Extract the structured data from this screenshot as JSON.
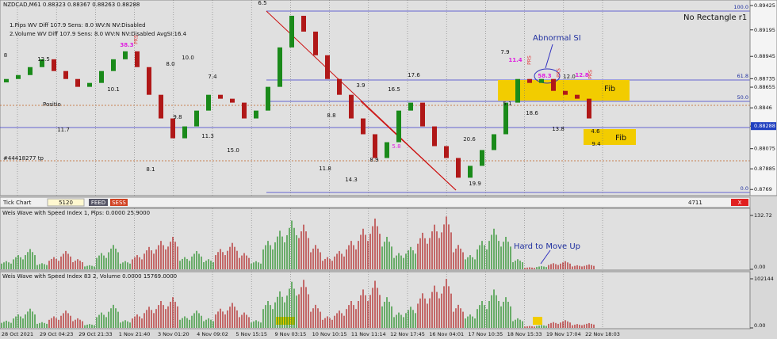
{
  "header": {
    "symbol_line": "NZDCAD,M61  0.88323 0.88367 0.88263 0.88288",
    "line1": "1.Pips    WV Diff 107.9 Sens: 8.0 WV:N NV:Disabled",
    "line2": "2.Volume WV Diff 107.9 Sens: 8.0 WV:N NV:Disabled AvgSI:16.4",
    "corner": "No Rectangle r1"
  },
  "annotations": [
    "6.5",
    "12.5",
    "8",
    "10.1",
    "11.7",
    "9.8",
    "8.1",
    "8.0",
    "10.0",
    "7.4",
    "11.3",
    "15.0",
    "3.9",
    "16.5",
    "17.6",
    "8.8",
    "11.8",
    "14.3",
    "8.9",
    "5.8",
    "20.6",
    "19.9",
    "7.9",
    "11.4",
    "58.3",
    "12.0",
    "12.8",
    "5.1",
    "18.6",
    "13.8",
    "4.6",
    "9.4",
    "38.3",
    "PRS",
    "PRS",
    "PRS",
    "PRS",
    "Positio",
    "#44418277 tp",
    "Fib",
    "Fib",
    "Abnormal SI"
  ],
  "fib_labels": [
    "100.0",
    "61.8",
    "50.0",
    "0.0"
  ],
  "toolbar": {
    "title": "Tick Chart",
    "count": "5120",
    "feed": "FEED",
    "sess": "SESS",
    "right": "4711",
    "close": "X"
  },
  "panel_titles": [
    "Weis Wave with Speed Index 1, Pips: 0.0000 25.9000",
    "Weis Wave with Speed Index 83 2, Volume 0.0000 15769.0000"
  ],
  "hard_note": "Hard to Move Up",
  "chart_data": [
    {
      "type": "candlestick",
      "up_color": "#1a8a1a",
      "down_color": "#b01818",
      "open": [
        0.887,
        0.88732,
        0.88769,
        0.88844,
        0.88918,
        0.88807,
        0.88732,
        0.88658,
        0.88695,
        0.88807,
        0.88918,
        0.88993,
        0.88844,
        0.88583,
        0.8836,
        0.88173,
        0.88285,
        0.88434,
        0.88583,
        0.88546,
        0.88509,
        0.8836,
        0.88434,
        0.88658,
        0.8903,
        0.89328,
        0.89179,
        0.88956,
        0.88732,
        0.88583,
        0.8836,
        0.88211,
        0.87987,
        0.88136,
        0.88434,
        0.88509,
        0.88285,
        0.88099,
        0.87987,
        0.87801,
        0.87913,
        0.88062,
        0.88211,
        0.88509,
        0.88732,
        0.88695,
        0.88732,
        0.8862,
        0.88583,
        0.88546
      ],
      "close": [
        0.88732,
        0.88769,
        0.88844,
        0.88918,
        0.88807,
        0.88732,
        0.88658,
        0.88695,
        0.88807,
        0.88918,
        0.88993,
        0.88844,
        0.88583,
        0.8836,
        0.88173,
        0.88285,
        0.88434,
        0.88583,
        0.88546,
        0.88509,
        0.8836,
        0.88434,
        0.88658,
        0.8903,
        0.89328,
        0.89179,
        0.88956,
        0.88732,
        0.88583,
        0.8836,
        0.88211,
        0.87987,
        0.88136,
        0.88434,
        0.88509,
        0.88285,
        0.88099,
        0.87987,
        0.87801,
        0.87913,
        0.88062,
        0.88211,
        0.88509,
        0.88732,
        0.88695,
        0.88732,
        0.8862,
        0.88583,
        0.88546,
        0.8836
      ],
      "ylim": [
        0.87632,
        0.89477
      ],
      "yticks": [
        0.89425,
        0.89195,
        0.88945,
        0.88735,
        0.88655,
        0.8846,
        0.88288,
        0.88075,
        0.87885,
        0.8769
      ],
      "x_tick_labels": [
        "28 Oct 2021",
        "29 Oct 04:23",
        "29 Oct 21:33",
        "1 Nov 21:40",
        "3 Nov 01:20",
        "4 Nov 09:02",
        "5 Nov 15:15",
        "9 Nov 03:15",
        "10 Nov 10:15",
        "11 Nov 11:14",
        "12 Nov 17:45",
        "16 Nov 04:01",
        "17 Nov 10:35",
        "18 Nov 15:33",
        "19 Nov 17:04",
        "22 Nov 18:03"
      ]
    },
    {
      "type": "bar",
      "values": [
        20,
        35,
        50,
        15,
        30,
        45,
        25,
        10,
        40,
        60,
        20,
        35,
        55,
        70,
        80,
        30,
        45,
        25,
        50,
        65,
        40,
        20,
        70,
        95,
        120,
        110,
        60,
        30,
        45,
        70,
        100,
        125,
        80,
        40,
        55,
        90,
        110,
        130,
        60,
        35,
        70,
        100,
        80,
        25,
        5,
        8,
        15,
        20,
        10,
        12
      ],
      "ylim": [
        0,
        132.72
      ],
      "yticks": [
        {
          "value": 132.72,
          "label": "132.72"
        },
        {
          "value": 0,
          "label": "0.00"
        }
      ]
    },
    {
      "type": "bar",
      "values": [
        15000,
        28000,
        40000,
        12000,
        24000,
        36000,
        20000,
        8000,
        32000,
        48000,
        16000,
        28000,
        44000,
        56000,
        64000,
        24000,
        36000,
        20000,
        40000,
        52000,
        32000,
        16000,
        56000,
        76000,
        96000,
        100000,
        48000,
        24000,
        36000,
        56000,
        80000,
        98000,
        64000,
        32000,
        44000,
        72000,
        88000,
        102000,
        48000,
        28000,
        56000,
        80000,
        64000,
        20000,
        4000,
        6000,
        12000,
        16000,
        8000,
        10000
      ],
      "ylim": [
        0,
        102144
      ],
      "yticks": [
        102144,
        {
          "value": 0,
          "label": "0.00"
        }
      ]
    }
  ]
}
